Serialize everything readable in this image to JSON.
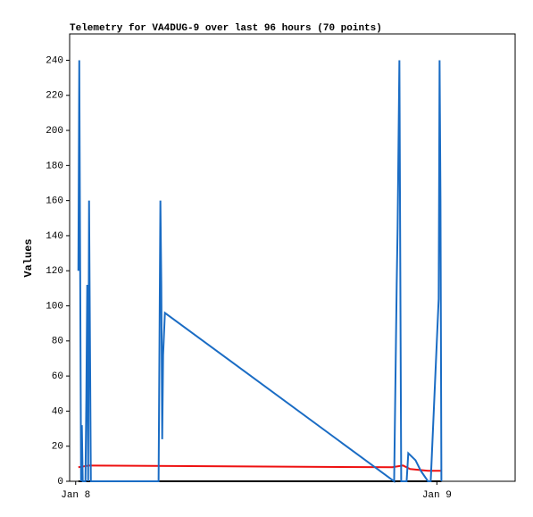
{
  "chart_data": {
    "type": "line",
    "title": "Telemetry for VA4DUG-9 over last 96 hours (70 points)",
    "y_label": "Values",
    "xlim": [
      -0.4,
      29.2
    ],
    "xticks": [
      {
        "value": 0,
        "label": "Jan 8"
      },
      {
        "value": 24,
        "label": "Jan 9"
      }
    ],
    "ylim": [
      0,
      255
    ],
    "yticks": [
      0,
      20,
      40,
      60,
      80,
      100,
      120,
      140,
      160,
      180,
      200,
      220,
      240
    ],
    "series": [
      {
        "color": "#ee1111",
        "x": [
          0.18,
          0.89,
          21.04,
          21.75,
          22.22,
          23.41,
          24.3
        ],
        "values": [
          8,
          9,
          8,
          9,
          7,
          6,
          6
        ]
      },
      {
        "color": "#000000",
        "x": [
          0.18,
          24.3
        ],
        "values": [
          0,
          0
        ]
      },
      {
        "color": "#1a6cc4",
        "x": [
          0.18,
          0.24,
          0.3,
          0.36,
          0.41,
          0.47,
          0.65,
          0.71,
          0.77,
          0.83,
          0.89,
          0.95,
          1.01,
          5.51,
          5.57,
          5.63,
          5.69,
          5.75,
          5.81,
          5.93,
          21.16,
          21.33,
          21.39,
          21.45,
          21.51,
          21.57,
          21.63,
          21.99,
          22.1,
          22.58,
          22.93,
          23.41,
          23.59,
          24.12,
          24.18,
          24.24,
          24.3
        ],
        "values": [
          120,
          240,
          120,
          0,
          32,
          0,
          0,
          48,
          112,
          0,
          160,
          80,
          0,
          0,
          80,
          160,
          112,
          24,
          72,
          96,
          0,
          112,
          144,
          192,
          240,
          120,
          0,
          0,
          16,
          12,
          6,
          0,
          0,
          104,
          240,
          160,
          0
        ]
      }
    ]
  }
}
